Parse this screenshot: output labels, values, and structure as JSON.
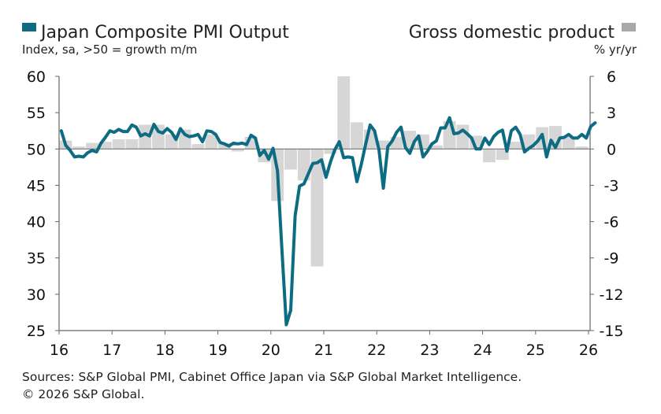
{
  "legend": {
    "left_title": "Japan Composite PMI Output",
    "left_subtitle": "Index, sa, >50 = growth m/m",
    "right_title": "Gross domestic product",
    "right_subtitle": "% yr/yr"
  },
  "footer": {
    "source": "Sources: S&P Global PMI, Cabinet Office Japan via S&P Global Market Intelligence.",
    "copyright": "© 2026 S&P Global."
  },
  "colors": {
    "pmi_line": "#0d6b82",
    "gdp_bars": "#d6d6d6",
    "legend_gdp_swatch": "#a8a8a8",
    "axis": "#666666"
  },
  "chart_data": {
    "type": "line",
    "x_ticks": [
      "16",
      "17",
      "18",
      "19",
      "20",
      "21",
      "22",
      "23",
      "24",
      "25",
      "26"
    ],
    "y_left_ticks": [
      "60",
      "55",
      "50",
      "45",
      "40",
      "35",
      "30",
      "25"
    ],
    "y_right_ticks": [
      "6",
      "3",
      "0",
      "-3",
      "-6",
      "-9",
      "-12",
      "-15"
    ],
    "ylim_left": [
      25,
      60
    ],
    "ylim_right": [
      -15,
      6
    ],
    "grid": false,
    "series": [
      {
        "name": "Japan Composite PMI Output",
        "axis": "left",
        "start": "2016-01",
        "frequency": "monthly",
        "values": [
          52.5,
          50.5,
          49.8,
          48.9,
          49.0,
          48.9,
          49.5,
          49.8,
          49.6,
          50.8,
          51.6,
          52.5,
          52.3,
          52.7,
          52.4,
          52.4,
          53.3,
          53.0,
          51.8,
          52.1,
          51.8,
          53.4,
          52.4,
          52.2,
          52.8,
          52.3,
          51.3,
          52.8,
          52.0,
          51.7,
          51.8,
          52.0,
          51.0,
          52.5,
          52.4,
          52.0,
          50.9,
          50.7,
          50.4,
          50.8,
          50.7,
          50.8,
          50.6,
          51.9,
          51.5,
          49.1,
          49.8,
          48.6,
          50.1,
          47.0,
          36.2,
          25.8,
          27.8,
          40.8,
          44.9,
          45.2,
          46.6,
          48.0,
          48.1,
          48.5,
          46.1,
          48.2,
          49.9,
          51.0,
          48.8,
          48.9,
          48.8,
          45.5,
          47.9,
          50.7,
          53.3,
          52.5,
          49.9,
          44.6,
          50.3,
          51.1,
          52.3,
          53.0,
          50.2,
          49.4,
          51.0,
          51.8,
          48.9,
          49.7,
          50.7,
          51.1,
          52.9,
          52.9,
          54.3,
          52.1,
          52.2,
          52.6,
          52.1,
          51.5,
          50.0,
          50.0,
          51.5,
          50.6,
          51.7,
          52.3,
          52.6,
          49.7,
          52.5,
          53.0,
          52.0,
          49.6,
          50.1,
          50.5,
          51.1,
          52.0,
          48.9,
          51.2,
          50.2,
          51.5,
          51.6,
          52.0,
          51.5,
          51.5,
          52.0,
          51.5,
          53.1,
          53.6
        ]
      },
      {
        "name": "Gross domestic product",
        "axis": "right",
        "frequency": "quarterly",
        "quarters": [
          "2016Q1",
          "2016Q2",
          "2016Q3",
          "2016Q4",
          "2017Q1",
          "2017Q2",
          "2017Q3",
          "2017Q4",
          "2018Q1",
          "2018Q2",
          "2018Q3",
          "2018Q4",
          "2019Q1",
          "2019Q2",
          "2019Q3",
          "2019Q4",
          "2020Q1",
          "2020Q2",
          "2020Q3",
          "2020Q4",
          "2021Q1",
          "2021Q2",
          "2021Q3",
          "2021Q4",
          "2022Q1",
          "2022Q2",
          "2022Q3",
          "2022Q4",
          "2023Q1",
          "2023Q2",
          "2023Q3",
          "2023Q4",
          "2024Q1",
          "2024Q2",
          "2024Q3",
          "2024Q4",
          "2025Q1",
          "2025Q2",
          "2025Q3",
          "2025Q4"
        ],
        "values": [
          0.7,
          0.2,
          0.5,
          0.6,
          0.8,
          0.8,
          2.0,
          2.0,
          1.2,
          1.6,
          0.4,
          1.2,
          0.5,
          -0.2,
          1.0,
          -1.1,
          -4.3,
          -1.7,
          -2.6,
          -9.7,
          -0.4,
          6.0,
          2.2,
          1.6,
          0.7,
          1.0,
          1.5,
          1.2,
          0.3,
          2.3,
          2.0,
          1.1,
          -1.1,
          -0.9,
          0.6,
          1.2,
          1.8,
          1.9,
          1.0,
          0.2
        ]
      }
    ]
  }
}
